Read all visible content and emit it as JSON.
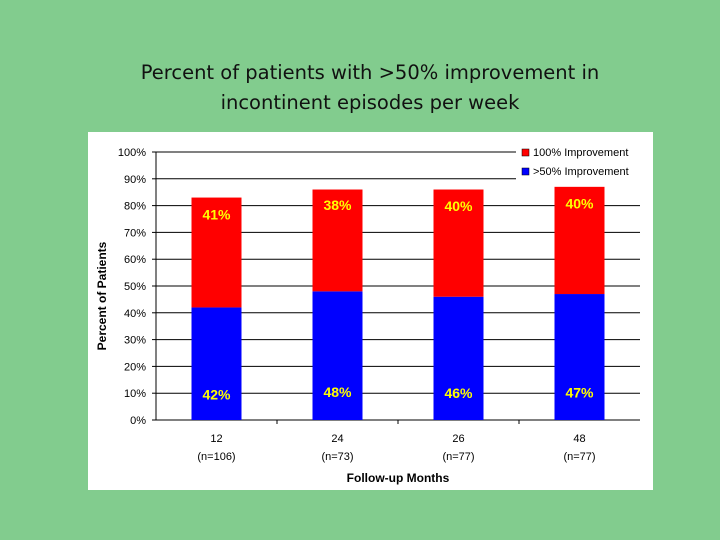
{
  "slide": {
    "title_line1": "Percent of patients with >50% improvement in",
    "title_line2": "incontinent episodes per week"
  },
  "chart_data": {
    "type": "bar",
    "stacked": true,
    "categories": [
      "12",
      "24",
      "26",
      "48"
    ],
    "category_sublabels": [
      "(n=106)",
      "(n=73)",
      "(n=77)",
      "(n=77)"
    ],
    "series": [
      {
        "name": ">50% Improvement",
        "values": [
          42,
          48,
          46,
          47
        ],
        "labels": [
          "42%",
          "48%",
          "46%",
          "47%"
        ],
        "color": "#0000ff"
      },
      {
        "name": "100% Improvement",
        "values": [
          41,
          38,
          40,
          40
        ],
        "labels": [
          "41%",
          "38%",
          "40%",
          "40%"
        ],
        "color": "#ff0000"
      }
    ],
    "xlabel": "Follow-up Months",
    "ylabel": "Percent of Patients",
    "ylim": [
      0,
      100
    ],
    "ytick_labels": [
      "0%",
      "10%",
      "20%",
      "30%",
      "40%",
      "50%",
      "60%",
      "70%",
      "80%",
      "90%",
      "100%"
    ],
    "grid": true,
    "legend_position": "top-right",
    "plot_background": "#ffffff"
  }
}
